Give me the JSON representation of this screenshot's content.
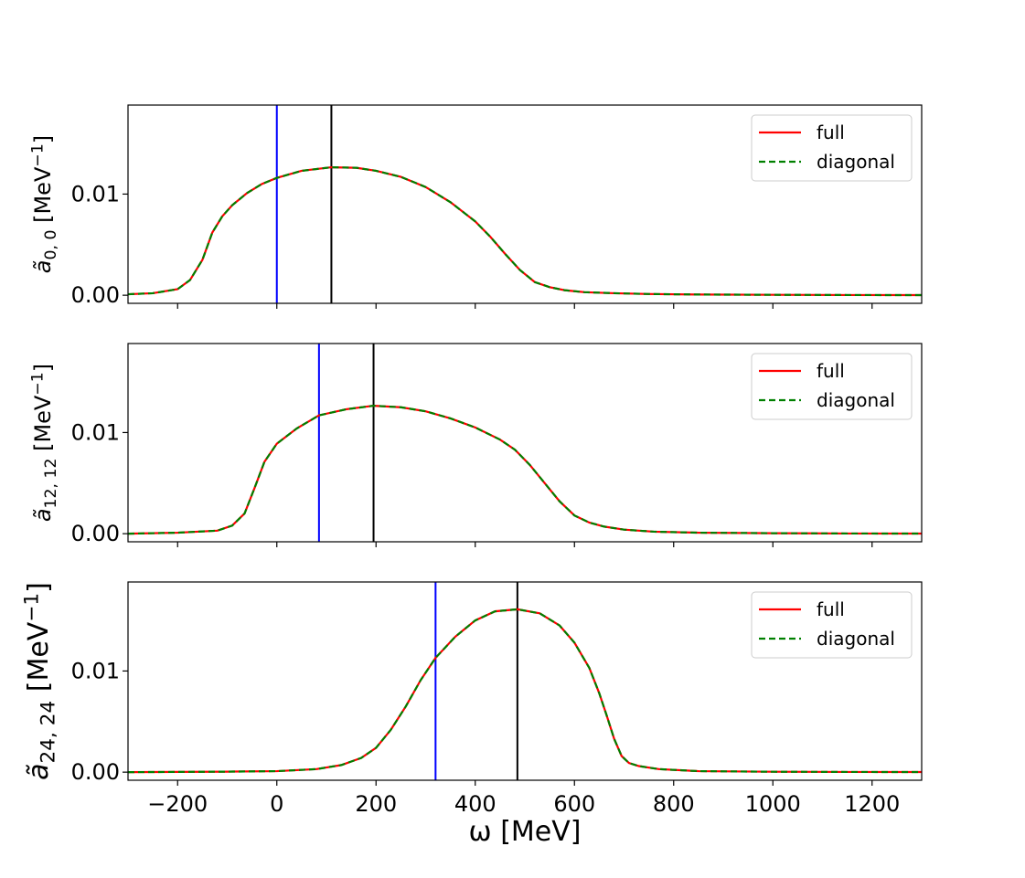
{
  "chart_data": {
    "type": "line",
    "xlabel": "ω [MeV]",
    "x_range": [
      -300,
      1300
    ],
    "x_ticks": [
      -200,
      0,
      200,
      400,
      600,
      800,
      1000,
      1200
    ],
    "x_tick_labels": [
      "−200",
      "0",
      "200",
      "400",
      "600",
      "800",
      "1000",
      "1200"
    ],
    "y_range": [
      -0.0008,
      0.0188
    ],
    "y_ticks": [
      0.0,
      0.01
    ],
    "y_tick_labels": [
      "0.00",
      "0.01"
    ],
    "legend": [
      "full",
      "diagonal"
    ],
    "colors": {
      "full": "#ff0000",
      "diagonal": "#008000",
      "vline_blue": "#0000ff",
      "vline_black": "#000000"
    },
    "panels": [
      {
        "ylabel_main": "ã",
        "ylabel_sub": "0, 0",
        "ylabel_unit": " [MeV",
        "ylabel_exp": "−1",
        "ylabel_close": "]",
        "vline_blue": 0,
        "vline_black": 110,
        "series": [
          {
            "name": "full",
            "x": [
              -300,
              -250,
              -200,
              -175,
              -150,
              -130,
              -110,
              -90,
              -60,
              -30,
              0,
              50,
              110,
              160,
              200,
              250,
              300,
              350,
              400,
              430,
              460,
              490,
              520,
              550,
              580,
              620,
              680,
              750,
              850,
              1000,
              1150,
              1300
            ],
            "y": [
              0.0001,
              0.0002,
              0.0006,
              0.0015,
              0.0035,
              0.0062,
              0.0078,
              0.0089,
              0.0101,
              0.011,
              0.0116,
              0.0123,
              0.01265,
              0.0126,
              0.0123,
              0.0117,
              0.0107,
              0.0092,
              0.0073,
              0.0058,
              0.0041,
              0.0025,
              0.0013,
              0.0008,
              0.0005,
              0.0003,
              0.0002,
              0.00012,
              7e-05,
              4e-05,
              2e-05,
              1e-05
            ]
          },
          {
            "name": "diagonal",
            "x": [
              -300,
              -250,
              -200,
              -175,
              -150,
              -130,
              -110,
              -90,
              -60,
              -30,
              0,
              50,
              110,
              160,
              200,
              250,
              300,
              350,
              400,
              430,
              460,
              490,
              520,
              550,
              580,
              620,
              680,
              750,
              850,
              1000,
              1150,
              1300
            ],
            "y": [
              0.0001,
              0.0002,
              0.0006,
              0.0015,
              0.0035,
              0.0062,
              0.0078,
              0.0089,
              0.0101,
              0.011,
              0.0116,
              0.0123,
              0.01265,
              0.0126,
              0.0123,
              0.0117,
              0.0107,
              0.0092,
              0.0073,
              0.0058,
              0.0041,
              0.0025,
              0.0013,
              0.0008,
              0.0005,
              0.0003,
              0.0002,
              0.00012,
              7e-05,
              4e-05,
              2e-05,
              1e-05
            ]
          }
        ]
      },
      {
        "ylabel_main": "ã",
        "ylabel_sub": "12, 12",
        "ylabel_unit": " [MeV",
        "ylabel_exp": "−1",
        "ylabel_close": "]",
        "vline_blue": 85,
        "vline_black": 195,
        "series": [
          {
            "name": "full",
            "x": [
              -300,
              -200,
              -120,
              -90,
              -65,
              -45,
              -25,
              0,
              40,
              85,
              140,
              195,
              250,
              300,
              350,
              400,
              450,
              480,
              510,
              540,
              570,
              600,
              630,
              660,
              700,
              760,
              850,
              1000,
              1150,
              1300
            ],
            "y": [
              0.0,
              0.0001,
              0.0003,
              0.0008,
              0.002,
              0.0045,
              0.0071,
              0.0089,
              0.0104,
              0.0117,
              0.0123,
              0.01265,
              0.0125,
              0.0121,
              0.0114,
              0.0105,
              0.0093,
              0.0083,
              0.0068,
              0.005,
              0.0032,
              0.0018,
              0.0011,
              0.0007,
              0.0004,
              0.0002,
              0.0001,
              5e-05,
              2e-05,
              1e-05
            ]
          },
          {
            "name": "diagonal",
            "x": [
              -300,
              -200,
              -120,
              -90,
              -65,
              -45,
              -25,
              0,
              40,
              85,
              140,
              195,
              250,
              300,
              350,
              400,
              450,
              480,
              510,
              540,
              570,
              600,
              630,
              660,
              700,
              760,
              850,
              1000,
              1150,
              1300
            ],
            "y": [
              0.0,
              0.0001,
              0.0003,
              0.0008,
              0.002,
              0.0045,
              0.0071,
              0.0089,
              0.0104,
              0.0117,
              0.0123,
              0.01265,
              0.0125,
              0.0121,
              0.0114,
              0.0105,
              0.0093,
              0.0083,
              0.0068,
              0.005,
              0.0032,
              0.0018,
              0.0011,
              0.0007,
              0.0004,
              0.0002,
              0.0001,
              5e-05,
              2e-05,
              1e-05
            ]
          }
        ]
      },
      {
        "ylabel_main": "ã",
        "ylabel_sub": "24, 24",
        "ylabel_unit": " [MeV",
        "ylabel_exp": "−1",
        "ylabel_close": "]",
        "vline_blue": 320,
        "vline_black": 485,
        "series": [
          {
            "name": "full",
            "x": [
              -300,
              -100,
              0,
              80,
              130,
              170,
              200,
              230,
              260,
              290,
              320,
              360,
              400,
              440,
              485,
              530,
              570,
              600,
              630,
              650,
              665,
              680,
              695,
              710,
              730,
              770,
              850,
              1000,
              1150,
              1300
            ],
            "y": [
              0.0,
              5e-05,
              0.0001,
              0.0003,
              0.0007,
              0.0014,
              0.0024,
              0.0042,
              0.0065,
              0.0091,
              0.0113,
              0.0134,
              0.015,
              0.0159,
              0.0161,
              0.0157,
              0.0145,
              0.0128,
              0.0103,
              0.0078,
              0.0056,
              0.0033,
              0.0016,
              0.0009,
              0.0006,
              0.0003,
              0.0001,
              4e-05,
              2e-05,
              1e-05
            ]
          },
          {
            "name": "diagonal",
            "x": [
              -300,
              -100,
              0,
              80,
              130,
              170,
              200,
              230,
              260,
              290,
              320,
              360,
              400,
              440,
              485,
              530,
              570,
              600,
              630,
              650,
              665,
              680,
              695,
              710,
              730,
              770,
              850,
              1000,
              1150,
              1300
            ],
            "y": [
              0.0,
              5e-05,
              0.0001,
              0.0003,
              0.0007,
              0.0014,
              0.0024,
              0.0042,
              0.0065,
              0.0091,
              0.0113,
              0.0134,
              0.015,
              0.0159,
              0.0161,
              0.0157,
              0.0145,
              0.0128,
              0.0103,
              0.0078,
              0.0056,
              0.0033,
              0.0016,
              0.0009,
              0.0006,
              0.0003,
              0.0001,
              4e-05,
              2e-05,
              1e-05
            ]
          }
        ]
      }
    ]
  }
}
